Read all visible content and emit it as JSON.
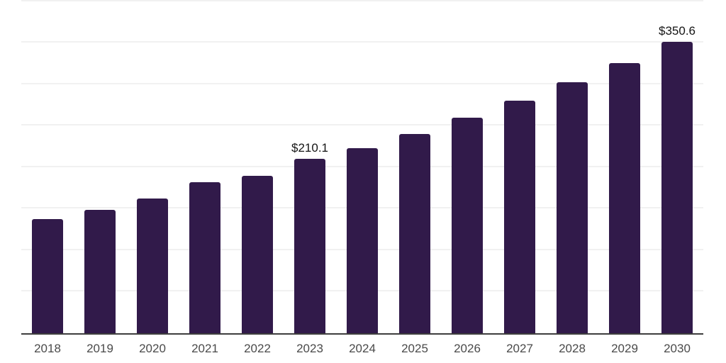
{
  "chart_data": {
    "type": "bar",
    "title": "",
    "xlabel": "",
    "ylabel": "",
    "categories": [
      "2018",
      "2019",
      "2020",
      "2021",
      "2022",
      "2023",
      "2024",
      "2025",
      "2026",
      "2027",
      "2028",
      "2029",
      "2030"
    ],
    "values": [
      137.1,
      148.4,
      161.9,
      182.1,
      189.8,
      210.1,
      223.1,
      240.2,
      259.5,
      280.0,
      302.2,
      325.6,
      350.6
    ],
    "data_labels": [
      "",
      "",
      "",
      "",
      "",
      "$210.1",
      "",
      "",
      "",
      "",
      "",
      "",
      "$350.6"
    ],
    "ylim": [
      0,
      400
    ],
    "gridline_step": 50,
    "grid": "horizontal",
    "legend": "none",
    "y_axis_tick_labels": "none",
    "colors": {
      "bar": "#311a4a",
      "gridline": "#f1f1f1",
      "axis_line": "#3e3e3e",
      "x_tick_label": "#4a4a4a",
      "data_label": "#141414",
      "background": "#ffffff"
    }
  }
}
